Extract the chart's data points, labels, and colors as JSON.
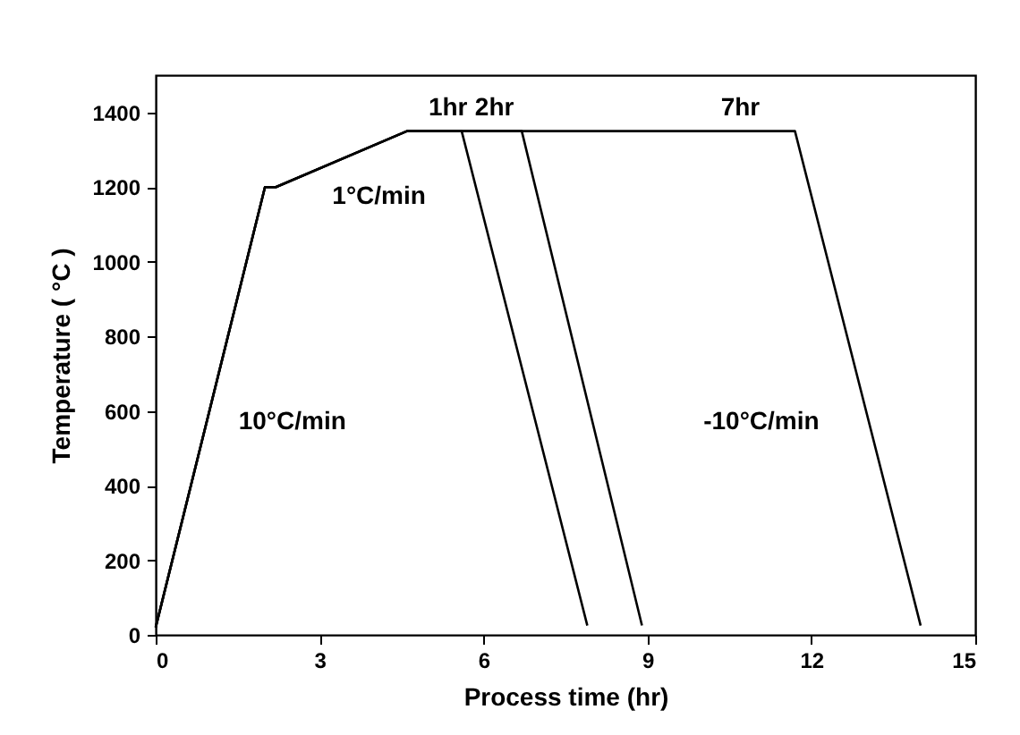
{
  "chart_data": {
    "type": "line",
    "xlabel": "Process time (hr)",
    "ylabel": "Temperature ( °C )",
    "xlim": [
      0,
      15
    ],
    "ylim": [
      0,
      1500
    ],
    "xticks": [
      0,
      3,
      6,
      9,
      12,
      15
    ],
    "yticks": [
      0,
      200,
      400,
      600,
      800,
      {
        "value": 1000,
        "label": "1000"
      },
      {
        "value": 1200,
        "label": "1200"
      },
      {
        "value": 1400,
        "label": "1400"
      }
    ],
    "grid": false,
    "legend": false,
    "marker": "none",
    "line_style": "solid",
    "series": [
      {
        "color": "#000000",
        "x": [
          0,
          2,
          2.2,
          4.6,
          5.6,
          7.9
        ],
        "values": [
          20,
          1200,
          1200,
          1350,
          1350,
          25
        ]
      },
      {
        "color": "#000000",
        "x": [
          0,
          2,
          2.2,
          4.6,
          6.7,
          8.9
        ],
        "values": [
          20,
          1200,
          1200,
          1350,
          1350,
          25
        ]
      },
      {
        "color": "#000000",
        "x": [
          0,
          2,
          2.2,
          4.6,
          11.7,
          14
        ],
        "values": [
          20,
          1200,
          1200,
          1350,
          1350,
          25
        ]
      }
    ],
    "annotations": [
      {
        "text": "1hr",
        "x": 5.35,
        "y": 1350
      },
      {
        "text": "2hr",
        "x": 6.2,
        "y": 1350
      },
      {
        "text": "7hr",
        "x": 10.7,
        "y": 1350
      },
      {
        "text": "1°C/min",
        "x": 3.4,
        "y": 1275
      },
      {
        "text": "10°C/min",
        "x": 0.93,
        "y": 570
      },
      {
        "text": "-10°C/min",
        "x": 13.05,
        "y": 570
      }
    ]
  }
}
